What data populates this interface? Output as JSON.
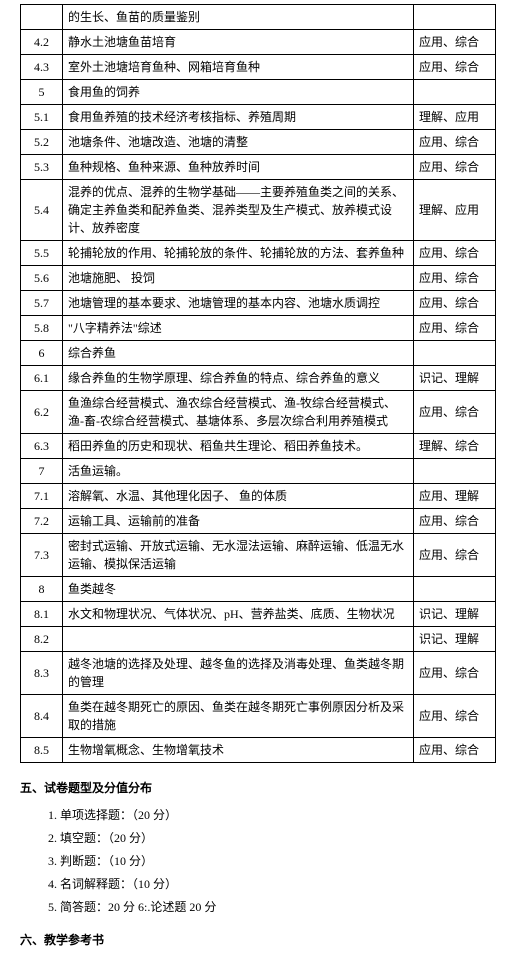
{
  "table": {
    "rows": [
      {
        "num": "",
        "content": "的生长、鱼苗的质量鉴别",
        "req": ""
      },
      {
        "num": "4.2",
        "content": "静水土池塘鱼苗培育",
        "req": "应用、综合"
      },
      {
        "num": "4.3",
        "content": "室外土池塘培育鱼种、网箱培育鱼种",
        "req": "应用、综合"
      },
      {
        "num": "5",
        "content": "食用鱼的饲养",
        "req": ""
      },
      {
        "num": "5.1",
        "content": "食用鱼养殖的技术经济考核指标、养殖周期",
        "req": "理解、应用"
      },
      {
        "num": "5.2",
        "content": "池塘条件、池塘改造、池塘的清整",
        "req": "应用、综合"
      },
      {
        "num": "5.3",
        "content": "鱼种规格、鱼种来源、鱼种放养时间",
        "req": "应用、综合"
      },
      {
        "num": "5.4",
        "content": "混养的优点、混养的生物学基础——主要养殖鱼类之间的关系、确定主养鱼类和配养鱼类、混养类型及生产模式、放养模式设计、放养密度",
        "req": "理解、应用"
      },
      {
        "num": "5.5",
        "content": "轮捕轮放的作用、轮捕轮放的条件、轮捕轮放的方法、套养鱼种",
        "req": "应用、综合"
      },
      {
        "num": "5.6",
        "content": "池塘施肥、   投饲",
        "req": "应用、综合"
      },
      {
        "num": "5.7",
        "content": "池塘管理的基本要求、池塘管理的基本内容、池塘水质调控",
        "req": "应用、综合"
      },
      {
        "num": "5.8",
        "content": "\"八字精养法\"综述",
        "req": "应用、综合"
      },
      {
        "num": "6",
        "content": "综合养鱼",
        "req": ""
      },
      {
        "num": "6.1",
        "content": "缘合养鱼的生物学原理、综合养鱼的特点、综合养鱼的意义",
        "req": "识记、理解"
      },
      {
        "num": "6.2",
        "content": "鱼渔综合经营模式、渔农综合经营模式、渔-牧综合经营模式、渔-畜-农综合经营模式、基塘体系、多层次综合利用养殖模式",
        "req": "应用、综合"
      },
      {
        "num": "6.3",
        "content": "稻田养鱼的历史和现状、稻鱼共生理论、稻田养鱼技术。",
        "req": "理解、综合"
      },
      {
        "num": "7",
        "content": "活鱼运输。",
        "req": ""
      },
      {
        "num": "7.1",
        "content": "溶解氧、水温、其他理化因子、 鱼的体质",
        "req": "应用、理解"
      },
      {
        "num": "7.2",
        "content": "运输工具、运输前的准备",
        "req": "应用、综合"
      },
      {
        "num": "7.3",
        "content": "密封式运输、开放式运输、无水湿法运输、麻醉运输、低温无水运输、模拟保活运输",
        "req": "应用、综合"
      },
      {
        "num": "8",
        "content": "鱼类越冬",
        "req": ""
      },
      {
        "num": "8.1",
        "content": "水文和物理状况、气体状况、pH、营养盐类、底质、生物状况",
        "req": "识记、理解"
      },
      {
        "num": "8.2",
        "content": "",
        "req": "识记、理解"
      },
      {
        "num": "8.3",
        "content": "越冬池塘的选择及处理、越冬鱼的选择及消毒处理、鱼类越冬期的管理",
        "req": "应用、综合"
      },
      {
        "num": "8.4",
        "content": "鱼类在越冬期死亡的原因、鱼类在越冬期死亡事例原因分析及采取的措施",
        "req": "应用、综合"
      },
      {
        "num": "8.5",
        "content": "生物增氧概念、生物增氧技术",
        "req": "应用、综合"
      }
    ]
  },
  "sections": {
    "five": {
      "heading": "五、试卷题型及分值分布",
      "items": [
        "1. 单项选择题：（20 分）",
        "2. 填空题：（20 分）",
        "3. 判断题：（10 分）",
        "4. 名词解释题：（10 分）",
        "5. 简答题：20 分 6:.论述题 20 分"
      ]
    },
    "six": {
      "heading": "六、教学参考书"
    }
  }
}
